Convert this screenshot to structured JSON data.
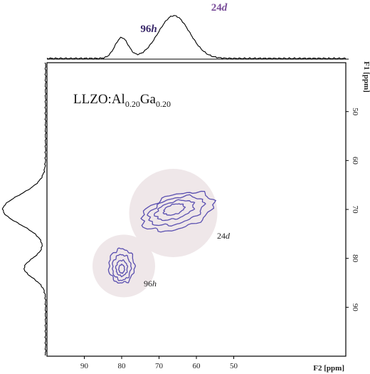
{
  "chart_data": {
    "type": "contour",
    "x_axis": {
      "label": "F2 [ppm]",
      "lim": [
        100,
        20
      ],
      "ticks": [
        90,
        80,
        70,
        60,
        50
      ]
    },
    "y_axis": {
      "label": "F1 [ppm]",
      "lim": [
        40,
        100
      ],
      "ticks": [
        50,
        60,
        70,
        80,
        90
      ]
    },
    "sample_label": {
      "main": "LLZO:Al",
      "sub1": "0.20",
      "mid": "Ga",
      "sub2": "0.20"
    },
    "peaks": [
      {
        "site": "96",
        "site_italic": "h",
        "f2": 80,
        "f1": 82,
        "top_label_color": "#3b2a6b"
      },
      {
        "site": "24",
        "site_italic": "d",
        "f2": 66,
        "f1": 70,
        "top_label_color": "#7a4e9a"
      }
    ],
    "contour_color": "#5a4fb0",
    "highlight_color": "#efe7e9"
  }
}
